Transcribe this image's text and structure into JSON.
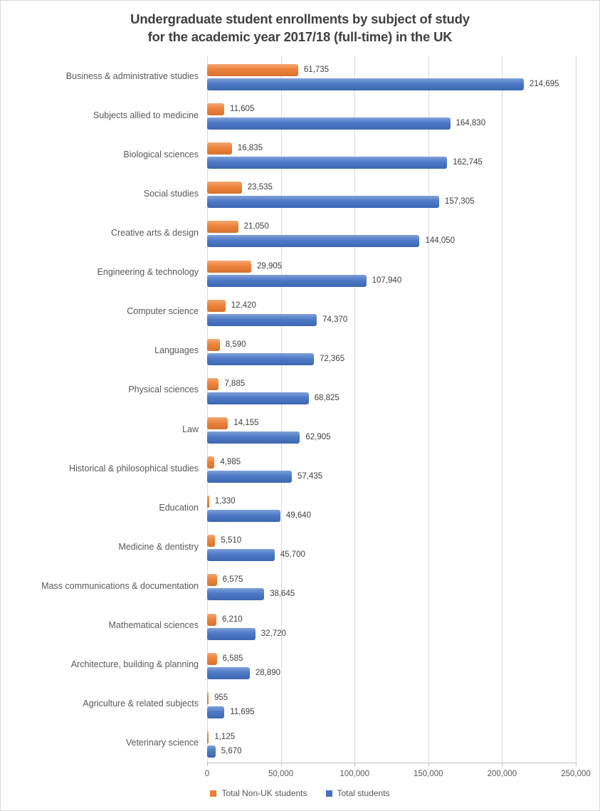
{
  "chart": {
    "title_lines": [
      "Undergraduate student enrollments by subject of study",
      "for the academic year 2017/18 (full-time) in the UK"
    ]
  },
  "chart_data": {
    "type": "bar",
    "orientation": "horizontal",
    "title": "Undergraduate student enrollments by subject of study for the academic year 2017/18 (full-time) in the UK",
    "categories": [
      "Business & administrative studies",
      "Subjects allied to medicine",
      "Biological sciences",
      "Social studies",
      "Creative arts & design",
      "Engineering & technology",
      "Computer science",
      "Languages",
      "Physical sciences",
      "Law",
      "Historical & philosophical studies",
      "Education",
      "Medicine & dentistry",
      "Mass communications & documentation",
      "Mathematical sciences",
      "Architecture, building & planning",
      "Agriculture & related subjects",
      "Veterinary science"
    ],
    "series": [
      {
        "name": "Total Non-UK students",
        "color": "#ED7D31",
        "values": [
          61735,
          11605,
          16835,
          23535,
          21050,
          29905,
          12420,
          8590,
          7885,
          14155,
          4985,
          1330,
          5510,
          6575,
          6210,
          6585,
          955,
          1125
        ],
        "labels": [
          "61,735",
          "11,605",
          "16,835",
          "23,535",
          "21,050",
          "29,905",
          "12,420",
          "8,590",
          "7,885",
          "14,155",
          "4,985",
          "1,330",
          "5,510",
          "6,575",
          "6,210",
          "6,585",
          "955",
          "1,125"
        ]
      },
      {
        "name": "Total students",
        "color": "#4472C4",
        "values": [
          214695,
          164830,
          162745,
          157305,
          144050,
          107940,
          74370,
          72365,
          68825,
          62905,
          57435,
          49640,
          45700,
          38645,
          32720,
          28890,
          11695,
          5670
        ],
        "labels": [
          "214,695",
          "164,830",
          "162,745",
          "157,305",
          "144,050",
          "107,940",
          "74,370",
          "72,365",
          "68,825",
          "62,905",
          "57,435",
          "49,640",
          "45,700",
          "38,645",
          "32,720",
          "28,890",
          "11,695",
          "5,670"
        ]
      }
    ],
    "x_axis": {
      "min": 0,
      "max": 250000,
      "tick_interval": 50000,
      "tick_labels": [
        "0",
        "50,000",
        "100,000",
        "150,000",
        "200,000",
        "250,000"
      ]
    },
    "grid": true,
    "data_labels": true,
    "legend_position": "bottom"
  },
  "colors": {
    "non_uk_bar": "#ED7D31",
    "total_bar": "#4472C4",
    "gridline": "#D9D9D9",
    "axis_line": "#BFBFBF",
    "title_text": "#404040",
    "category_text": "#595959",
    "axis_text": "#595959",
    "value_text": "#404040",
    "background": "#FFFFFF",
    "frame_border": "#D9D9D9"
  }
}
